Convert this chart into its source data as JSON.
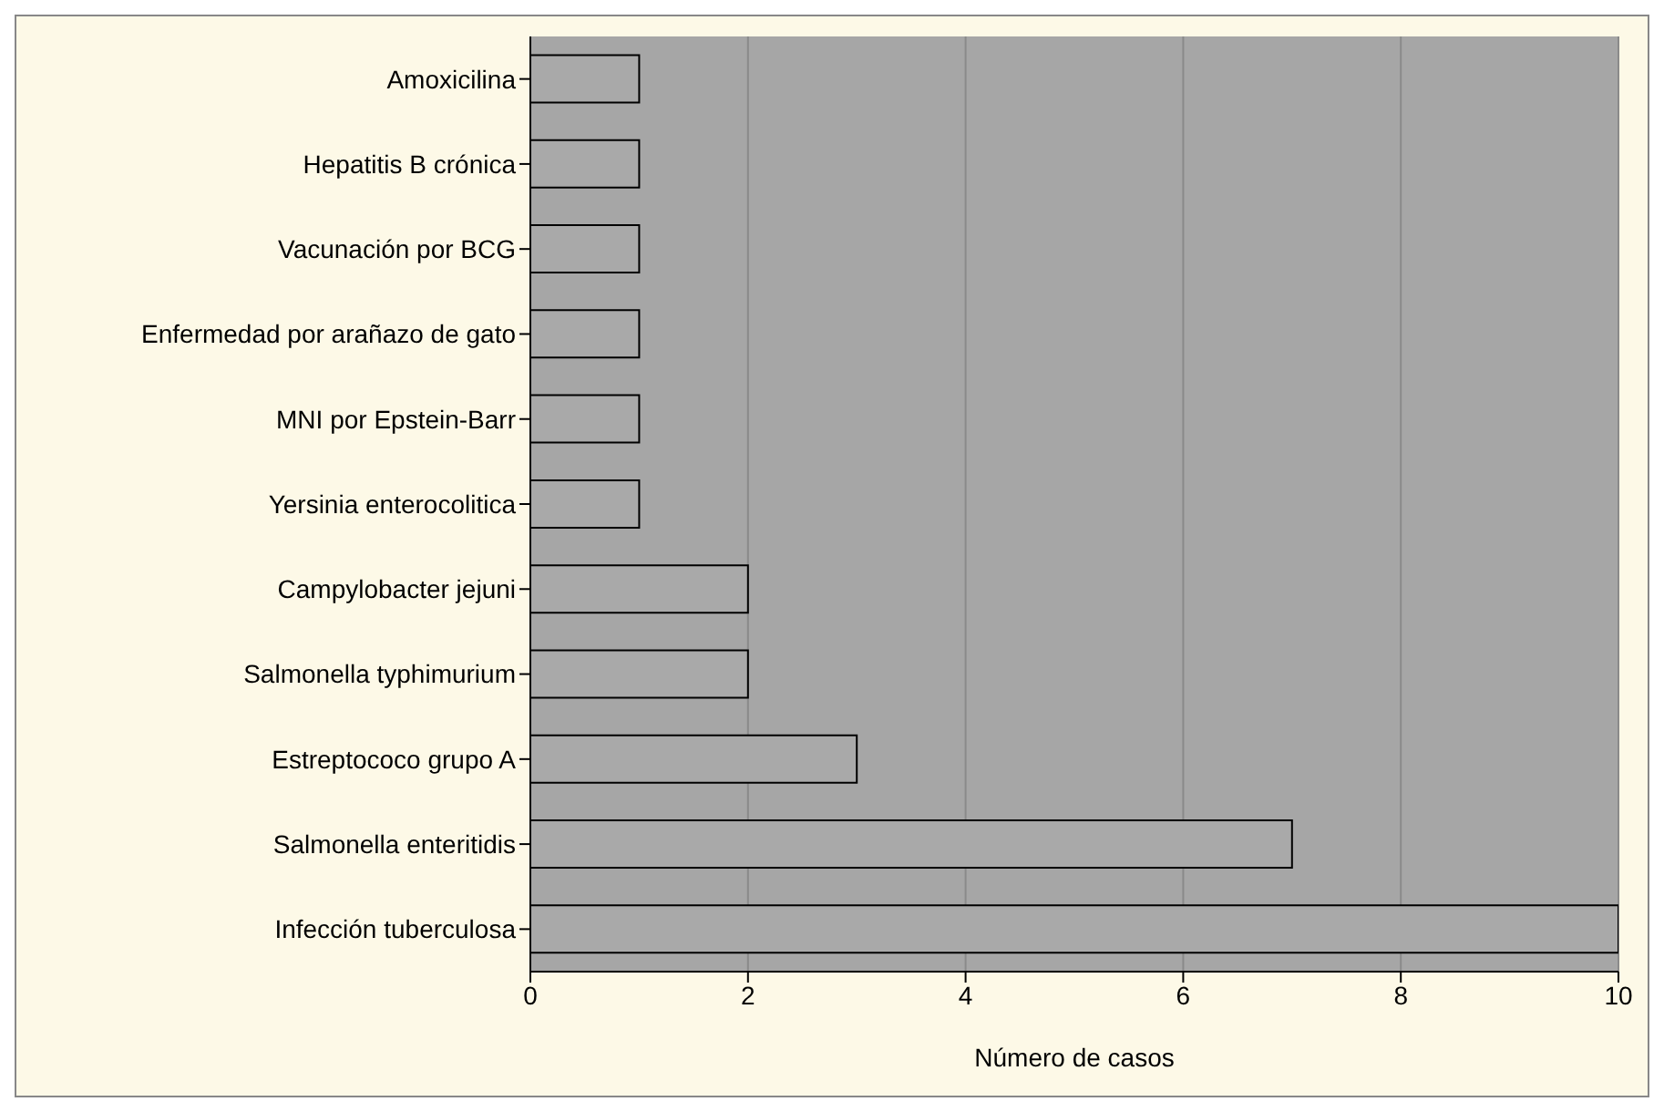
{
  "chart_data": {
    "type": "bar",
    "orientation": "horizontal",
    "xlabel": "Número de casos",
    "categories": [
      "Amoxicilina",
      "Hepatitis B crónica",
      "Vacunación por BCG",
      "Enfermedad por arañazo de gato",
      "MNI por Epstein-Barr",
      "Yersinia enterocolitica",
      "Campylobacter jejuni",
      "Salmonella typhimurium",
      "Estreptococo grupo A",
      "Salmonella enteritidis",
      "Infección tuberculosa"
    ],
    "values": [
      1,
      1,
      1,
      1,
      1,
      1,
      2,
      2,
      3,
      7,
      10
    ],
    "color": "#a9a9a9",
    "xlim": [
      0,
      10
    ],
    "xticks": [
      0,
      2,
      4,
      6,
      8,
      10
    ],
    "grid": "x"
  }
}
